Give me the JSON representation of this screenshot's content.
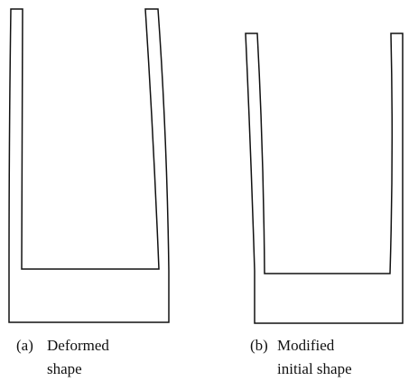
{
  "figures": [
    {
      "label": "(a)",
      "caption": [
        "Deformed",
        "shape"
      ]
    },
    {
      "label": "(b)",
      "caption": [
        "Modified",
        "initial shape"
      ]
    }
  ]
}
